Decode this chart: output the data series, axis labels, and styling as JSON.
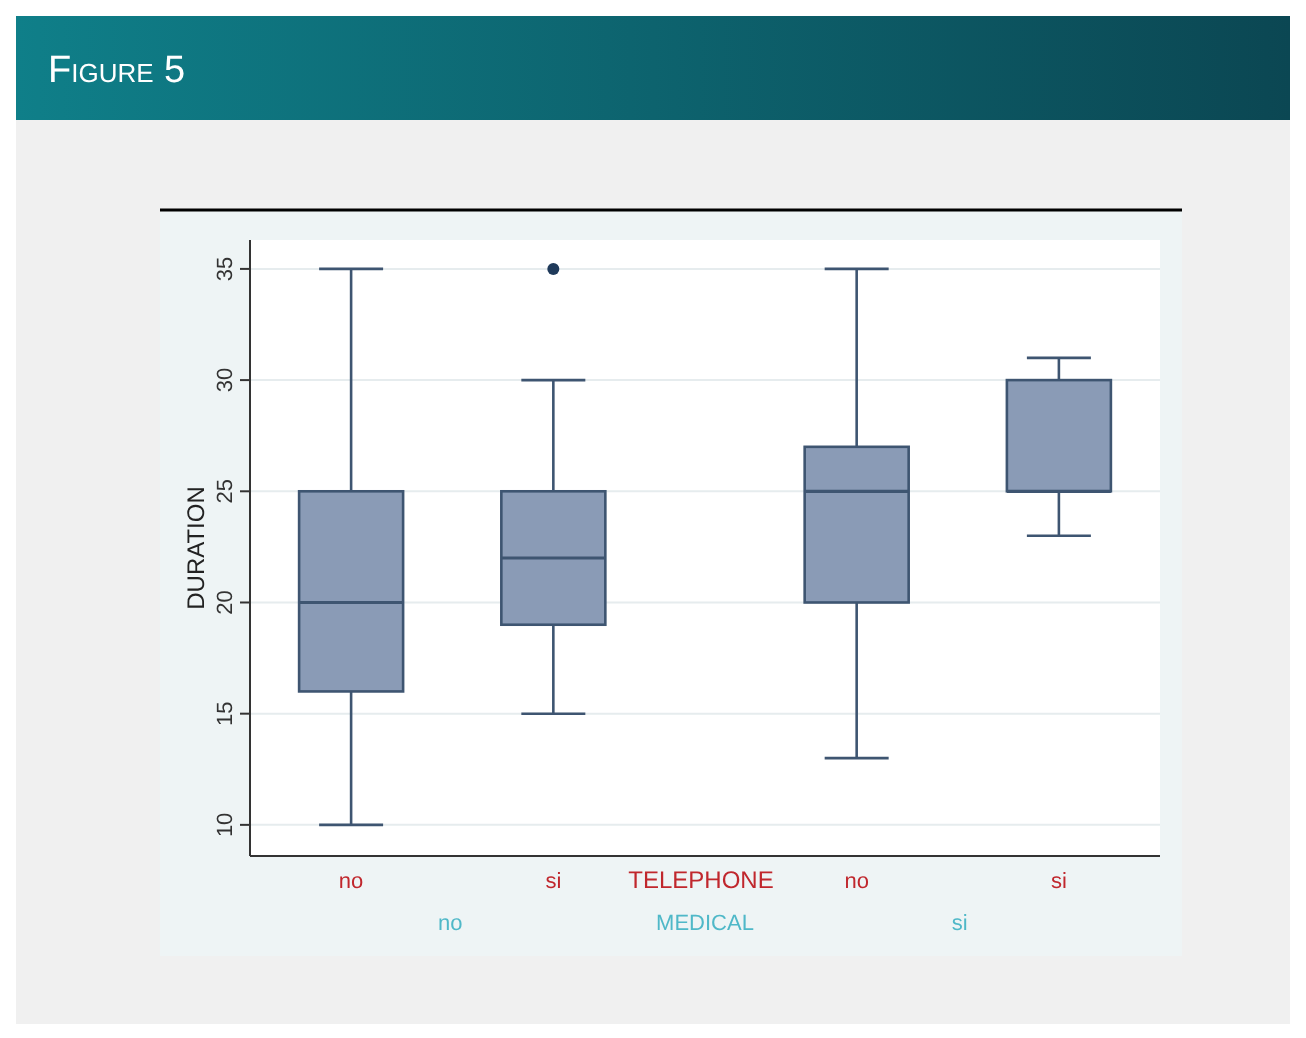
{
  "chart_data": {
    "type": "box",
    "title": "Figure 5",
    "ylabel": "DURATION",
    "xlabel": "TELEPHONE",
    "categories": [
      "no",
      "si",
      "no",
      "si"
    ],
    "annotations": [
      "no",
      "MEDICAL",
      "si"
    ],
    "ylim": [
      8.6,
      36.3
    ],
    "yticks": [
      10,
      15,
      20,
      25,
      30,
      35
    ],
    "grid": "y",
    "color": "#8a9bb6",
    "boxes": [
      {
        "low": 10,
        "q1": 16,
        "median": 20,
        "q3": 25,
        "high": 35
      },
      {
        "low": 15,
        "q1": 19,
        "median": 22,
        "q3": 25,
        "high": 30,
        "outliers": [
          35
        ]
      },
      {
        "low": 13,
        "q1": 20,
        "median": 25,
        "q3": 27,
        "high": 35
      },
      {
        "low": 23,
        "q1": 25,
        "median": 25,
        "q3": 30,
        "high": 31
      }
    ]
  }
}
